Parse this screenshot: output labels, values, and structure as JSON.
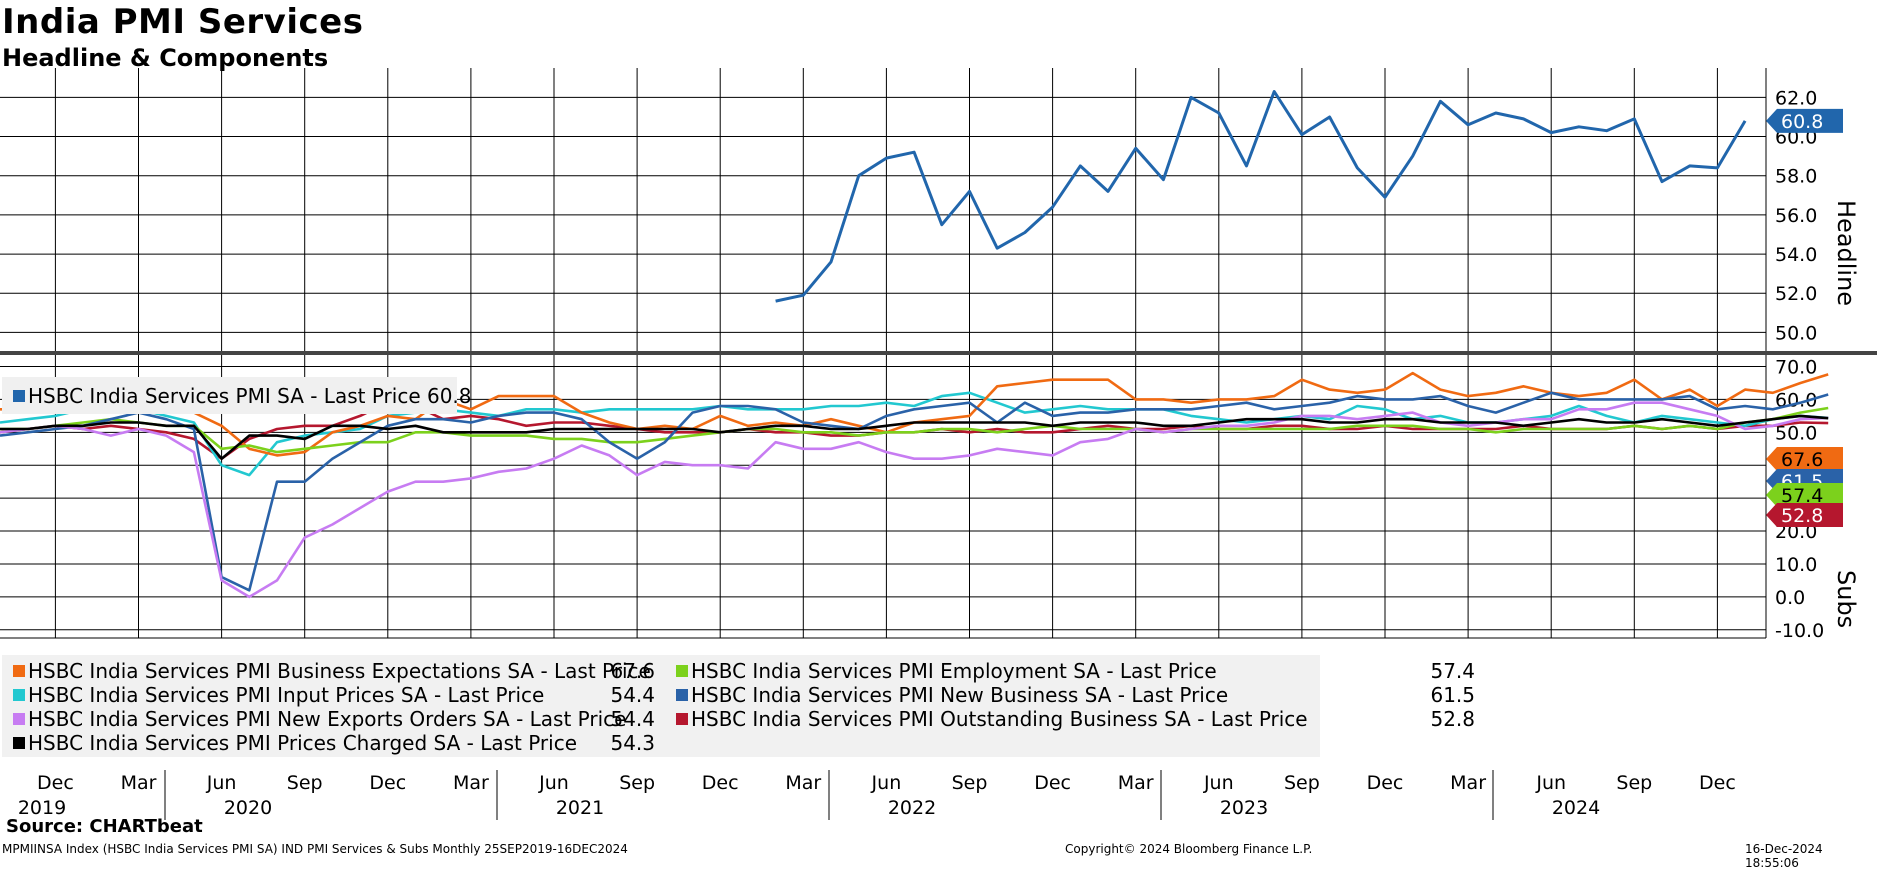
{
  "title": "India PMI Services",
  "subtitle": "Headline & Components",
  "source": "Source: CHARTbeat",
  "footer": {
    "left": "MPMIINSA Index (HSBC India Services PMI SA) IND PMI Services & Subs  Monthly 25SEP2019-16DEC2024",
    "center": "Copyright© 2024 Bloomberg Finance L.P.",
    "right": "16-Dec-2024 18:55:06"
  },
  "colors": {
    "headline": "#2166ac",
    "business_expectations": "#f06a12",
    "input_prices": "#22c8d0",
    "new_export_orders": "#c77cf2",
    "prices_charged": "#000000",
    "employment": "#7cd11c",
    "new_business": "#2a62a8",
    "outstanding_business": "#b5172e"
  },
  "chart_data": [
    {
      "type": "line",
      "panel": "top",
      "axis_title": "Headline",
      "ylim": [
        49.0,
        63.5
      ],
      "yticks": [
        "62.0",
        "60.0",
        "58.0",
        "56.0",
        "54.0",
        "52.0",
        "50.0"
      ],
      "ytick_values": [
        62,
        60,
        58,
        56,
        54,
        52,
        50
      ],
      "grid": true,
      "legend_placement": "bottom-left",
      "series": [
        {
          "name": "HSBC India Services PMI SA - Last Price 60.8",
          "last_label": "60.8",
          "color_key": "headline",
          "points": [
            [
              "2022-02",
              51.6
            ],
            [
              "2022-03",
              51.9
            ],
            [
              "2022-04",
              53.6
            ],
            [
              "2022-05",
              58.0
            ],
            [
              "2022-06",
              58.9
            ],
            [
              "2022-07",
              59.2
            ],
            [
              "2022-08",
              55.5
            ],
            [
              "2022-09",
              57.2
            ],
            [
              "2022-10",
              54.3
            ],
            [
              "2022-11",
              55.1
            ],
            [
              "2022-12",
              56.4
            ],
            [
              "2023-01",
              58.5
            ],
            [
              "2023-02",
              57.2
            ],
            [
              "2023-03",
              59.4
            ],
            [
              "2023-04",
              57.8
            ],
            [
              "2023-05",
              62.0
            ],
            [
              "2023-06",
              61.2
            ],
            [
              "2023-07",
              58.5
            ],
            [
              "2023-08",
              62.3
            ],
            [
              "2023-09",
              60.1
            ],
            [
              "2023-10",
              61.0
            ],
            [
              "2023-11",
              58.4
            ],
            [
              "2023-12",
              56.9
            ],
            [
              "2024-01",
              59.0
            ],
            [
              "2024-02",
              61.8
            ],
            [
              "2024-03",
              60.6
            ],
            [
              "2024-04",
              61.2
            ],
            [
              "2024-05",
              60.9
            ],
            [
              "2024-06",
              60.2
            ],
            [
              "2024-07",
              60.5
            ],
            [
              "2024-08",
              60.3
            ],
            [
              "2024-09",
              60.9
            ],
            [
              "2024-10",
              57.7
            ],
            [
              "2024-11",
              58.5
            ],
            [
              "2024-12",
              58.4
            ],
            [
              "2025-01",
              60.8
            ]
          ]
        }
      ]
    },
    {
      "type": "line",
      "panel": "bottom",
      "axis_title": "Subs",
      "ylim": [
        -12.5,
        73.5
      ],
      "yticks": [
        "70.0",
        "60.0",
        "50.0",
        "40.0",
        "30.0",
        "20.0",
        "10.0",
        "0.0",
        "-10.0"
      ],
      "ytick_values": [
        70,
        60,
        50,
        40,
        30,
        20,
        10,
        0,
        -10
      ],
      "grid": true,
      "legend_placement": "bottom-left",
      "series": [
        {
          "name": "HSBC India Services PMI Business Expectations SA - Last Price",
          "last_value": "67.6",
          "color_key": "business_expectations",
          "values": [
            57,
            57,
            60,
            63,
            63,
            64,
            61,
            56,
            52,
            45,
            43,
            44,
            50,
            52,
            55,
            54,
            60,
            57,
            61,
            61,
            61,
            56,
            53,
            51,
            52,
            51,
            55,
            52,
            53,
            52,
            54,
            52,
            50,
            53,
            54,
            55,
            64,
            65,
            66,
            66,
            66,
            60,
            60,
            59,
            60,
            60,
            61,
            66,
            63,
            62,
            63,
            68,
            63,
            61,
            62,
            64,
            62,
            61,
            62,
            66,
            60,
            63,
            58,
            63,
            62,
            65,
            67.6
          ]
        },
        {
          "name": "HSBC India Services PMI Input Prices SA - Last Price",
          "last_value": "54.4",
          "color_key": "input_prices",
          "values": [
            53,
            54,
            55,
            57,
            58,
            57,
            55,
            53,
            40,
            37,
            47,
            49,
            50,
            51,
            55,
            56,
            57,
            56,
            55,
            57,
            57,
            56,
            57,
            57,
            57,
            57,
            58,
            57,
            57,
            57,
            58,
            58,
            59,
            58,
            61,
            62,
            59,
            56,
            57,
            58,
            57,
            57,
            57,
            55,
            54,
            53,
            54,
            55,
            54,
            58,
            57,
            54,
            55,
            53,
            53,
            54,
            55,
            58,
            55,
            53,
            55,
            54,
            53,
            52,
            54,
            55,
            54.4
          ]
        },
        {
          "name": "HSBC India Services PMI New Exports Orders SA - Last Price",
          "last_value": "54.4",
          "color_key": "new_export_orders",
          "values": [
            50,
            51,
            52,
            51,
            49,
            51,
            49,
            44,
            5,
            0,
            5,
            18,
            22,
            27,
            32,
            35,
            35,
            36,
            38,
            39,
            42,
            46,
            43,
            37,
            41,
            40,
            40,
            39,
            47,
            45,
            45,
            47,
            44,
            42,
            42,
            43,
            45,
            44,
            43,
            47,
            48,
            51,
            50,
            51,
            52,
            52,
            53,
            55,
            55,
            54,
            55,
            56,
            53,
            52,
            53,
            54,
            54,
            57,
            57,
            59,
            59,
            57,
            55,
            51,
            52,
            54,
            54.4
          ]
        },
        {
          "name": "HSBC India Services PMI Prices Charged SA - Last Price",
          "last_value": "54.3",
          "color_key": "prices_charged",
          "values": [
            51,
            51,
            52,
            52,
            53,
            53,
            52,
            52,
            42,
            49,
            49,
            48,
            52,
            52,
            51,
            52,
            50,
            50,
            50,
            50,
            51,
            51,
            51,
            51,
            51,
            51,
            50,
            51,
            52,
            52,
            51,
            51,
            52,
            53,
            53,
            53,
            53,
            53,
            52,
            53,
            53,
            53,
            52,
            52,
            53,
            54,
            54,
            54,
            53,
            53,
            54,
            54,
            53,
            53,
            53,
            52,
            53,
            54,
            53,
            53,
            54,
            53,
            52,
            53,
            54,
            55,
            54.3
          ]
        },
        {
          "name": "HSBC India Services PMI Employment SA - Last Price",
          "last_value": "57.4",
          "color_key": "employment",
          "values": [
            51,
            51,
            52,
            53,
            54,
            53,
            52,
            52,
            45,
            46,
            44,
            45,
            46,
            47,
            47,
            50,
            50,
            49,
            49,
            49,
            48,
            48,
            47,
            47,
            48,
            49,
            50,
            51,
            51,
            50,
            50,
            49,
            50,
            50,
            51,
            51,
            50,
            51,
            52,
            51,
            51,
            51,
            50,
            51,
            51,
            51,
            51,
            51,
            51,
            52,
            52,
            52,
            51,
            51,
            50,
            51,
            51,
            51,
            51,
            52,
            51,
            52,
            51,
            53,
            54,
            56,
            57.4
          ]
        },
        {
          "name": "HSBC India Services PMI New Business SA - Last Price",
          "last_value": "61.5",
          "color_key": "new_business",
          "values": [
            49,
            50,
            51,
            52,
            54,
            56,
            54,
            51,
            6,
            2,
            35,
            35,
            42,
            47,
            52,
            54,
            54,
            53,
            55,
            56,
            56,
            54,
            47,
            42,
            47,
            56,
            58,
            58,
            57,
            53,
            52,
            51,
            55,
            57,
            58,
            59,
            53,
            59,
            55,
            56,
            56,
            57,
            57,
            57,
            58,
            59,
            57,
            58,
            59,
            61,
            60,
            60,
            61,
            58,
            56,
            59,
            62,
            60,
            60,
            60,
            60,
            61,
            57,
            58,
            57,
            59,
            61.5
          ]
        },
        {
          "name": "HSBC India Services PMI Outstanding Business SA - Last Price",
          "last_value": "52.8",
          "color_key": "outstanding_business",
          "values": [
            50,
            51,
            52,
            51,
            52,
            51,
            50,
            48,
            42,
            48,
            51,
            52,
            52,
            55,
            59,
            58,
            54,
            55,
            54,
            52,
            53,
            53,
            52,
            51,
            50,
            50,
            50,
            51,
            50,
            50,
            49,
            49,
            50,
            50,
            51,
            50,
            51,
            50,
            50,
            51,
            52,
            51,
            51,
            52,
            51,
            51,
            52,
            52,
            51,
            51,
            52,
            51,
            51,
            51,
            51,
            52,
            51,
            51,
            51,
            52,
            51,
            52,
            51,
            52,
            52,
            53,
            52.8
          ]
        }
      ]
    }
  ],
  "x_axis": {
    "months": [
      "Dec",
      "Mar",
      "Jun",
      "Sep",
      "Dec",
      "Mar",
      "Jun",
      "Sep",
      "Dec",
      "Mar",
      "Jun",
      "Sep",
      "Dec",
      "Mar",
      "Jun",
      "Sep",
      "Dec",
      "Mar",
      "Jun",
      "Sep",
      "Dec"
    ],
    "years": [
      "2019",
      "2020",
      "2021",
      "2022",
      "2023",
      "2024"
    ]
  }
}
